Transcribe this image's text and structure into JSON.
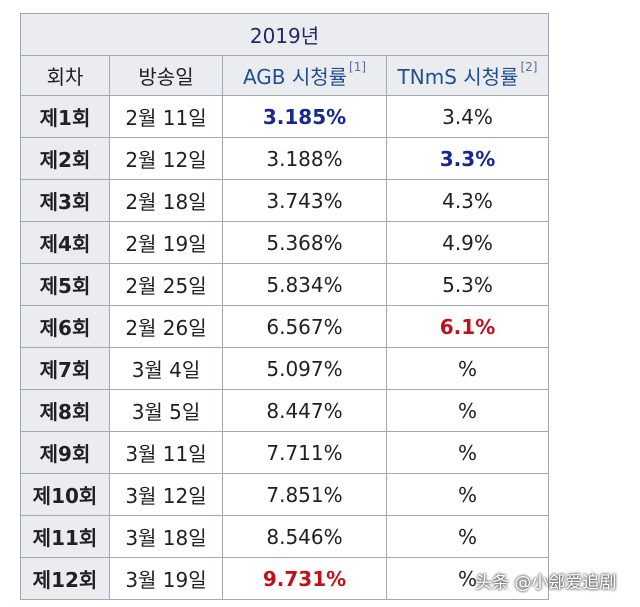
{
  "title": "2019년",
  "headers": {
    "episode": "회차",
    "airdate": "방송일",
    "agb": "AGB 시청률",
    "agb_ref": "[1]",
    "tnms": "TNmS 시청률",
    "tnms_ref": "[2]"
  },
  "rows": [
    {
      "ep": "제1회",
      "date": "2월 11일",
      "agb": "3.185%",
      "tnms": "3.4%",
      "agb_style": "high-blue",
      "tnms_style": ""
    },
    {
      "ep": "제2회",
      "date": "2월 12일",
      "agb": "3.188%",
      "tnms": "3.3%",
      "agb_style": "",
      "tnms_style": "high-blue"
    },
    {
      "ep": "제3회",
      "date": "2월 18일",
      "agb": "3.743%",
      "tnms": "4.3%",
      "agb_style": "",
      "tnms_style": ""
    },
    {
      "ep": "제4회",
      "date": "2월 19일",
      "agb": "5.368%",
      "tnms": "4.9%",
      "agb_style": "",
      "tnms_style": ""
    },
    {
      "ep": "제5회",
      "date": "2월 25일",
      "agb": "5.834%",
      "tnms": "5.3%",
      "agb_style": "",
      "tnms_style": ""
    },
    {
      "ep": "제6회",
      "date": "2월 26일",
      "agb": "6.567%",
      "tnms": "6.1%",
      "agb_style": "",
      "tnms_style": "high-red"
    },
    {
      "ep": "제7회",
      "date": "3월 4일",
      "agb": "5.097%",
      "tnms": "%",
      "agb_style": "",
      "tnms_style": ""
    },
    {
      "ep": "제8회",
      "date": "3월 5일",
      "agb": "8.447%",
      "tnms": "%",
      "agb_style": "",
      "tnms_style": ""
    },
    {
      "ep": "제9회",
      "date": "3월 11일",
      "agb": "7.711%",
      "tnms": "%",
      "agb_style": "",
      "tnms_style": ""
    },
    {
      "ep": "제10회",
      "date": "3월 12일",
      "agb": "7.851%",
      "tnms": "%",
      "agb_style": "",
      "tnms_style": ""
    },
    {
      "ep": "제11회",
      "date": "3월 18일",
      "agb": "8.546%",
      "tnms": "%",
      "agb_style": "",
      "tnms_style": ""
    },
    {
      "ep": "제12회",
      "date": "3월 19일",
      "agb": "9.731%",
      "tnms": "%",
      "agb_style": "high-red",
      "tnms_style": ""
    }
  ],
  "watermark": "头条 @小郐爱追剧",
  "colors": {
    "header_bg": "#eaecf0",
    "border": "#a2a9b1",
    "highlight_blue": "#17288e",
    "highlight_red": "#c0101a"
  }
}
